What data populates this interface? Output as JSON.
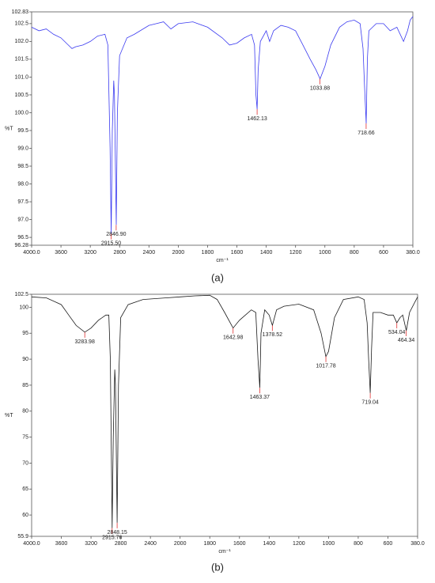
{
  "chart_data": [
    {
      "type": "line",
      "caption": "(a)",
      "x_label": "cm⁻¹",
      "y_label": "%T",
      "color": "#3a3af0",
      "xlim": [
        4000,
        380
      ],
      "xticks": [
        {
          "value": 4000,
          "label": "4000.0"
        },
        3600,
        3200,
        2800,
        2400,
        2000,
        1800,
        1600,
        1400,
        1200,
        1000,
        800,
        600,
        {
          "value": 380,
          "label": "380.0"
        }
      ],
      "ylim": [
        96.28,
        102.83
      ],
      "yticks": [
        96.28,
        96.5,
        {
          "value": 97,
          "label": "97.0"
        },
        97.5,
        {
          "value": 98,
          "label": "98.0"
        },
        98.5,
        {
          "value": 99,
          "label": "99.0"
        },
        99.5,
        {
          "value": 100,
          "label": "100.0"
        },
        100.5,
        {
          "value": 101,
          "label": "101.0"
        },
        101.5,
        {
          "value": 102,
          "label": "102.0"
        },
        102.5,
        102.83
      ],
      "x": [
        4000,
        3900,
        3800,
        3700,
        3600,
        3500,
        3450,
        3400,
        3300,
        3200,
        3100,
        3000,
        2960,
        2930,
        2915,
        2900,
        2880,
        2870,
        2846,
        2830,
        2800,
        2700,
        2600,
        2400,
        2300,
        2200,
        2100,
        2000,
        1900,
        1800,
        1700,
        1650,
        1600,
        1550,
        1500,
        1480,
        1470,
        1462,
        1455,
        1440,
        1400,
        1377,
        1350,
        1300,
        1250,
        1200,
        1150,
        1100,
        1060,
        1033,
        1000,
        960,
        900,
        850,
        800,
        760,
        740,
        730,
        718,
        710,
        700,
        650,
        600,
        550,
        500,
        450,
        420,
        400,
        380
      ],
      "values": [
        102.4,
        102.3,
        102.35,
        102.2,
        102.1,
        101.9,
        101.8,
        101.85,
        101.9,
        102.0,
        102.15,
        102.2,
        101.9,
        99.0,
        96.6,
        99.5,
        100.9,
        100.5,
        96.85,
        100.0,
        101.6,
        102.1,
        102.2,
        102.45,
        102.5,
        102.55,
        102.35,
        102.5,
        102.55,
        102.4,
        102.1,
        101.9,
        101.95,
        102.1,
        102.2,
        101.9,
        100.5,
        100.1,
        101.2,
        102.0,
        102.3,
        102.0,
        102.3,
        102.45,
        102.4,
        102.3,
        101.9,
        101.5,
        101.2,
        100.95,
        101.3,
        101.9,
        102.4,
        102.55,
        102.6,
        102.5,
        101.8,
        100.8,
        99.7,
        101.5,
        102.3,
        102.5,
        102.5,
        102.3,
        102.4,
        102.0,
        102.3,
        102.6,
        102.7
      ],
      "peaks": [
        {
          "x": 2915.5,
          "y": 96.6,
          "label": "2915.50"
        },
        {
          "x": 2846.9,
          "y": 96.85,
          "label": "2846.90"
        },
        {
          "x": 1462.13,
          "y": 100.1,
          "label": "1462.13"
        },
        {
          "x": 1033.88,
          "y": 100.95,
          "label": "1033.88"
        },
        {
          "x": 718.66,
          "y": 99.7,
          "label": "718.66"
        }
      ]
    },
    {
      "type": "line",
      "caption": "(b)",
      "x_label": "cm⁻¹",
      "y_label": "%T",
      "color": "#1a1a1a",
      "xlim": [
        4000,
        380
      ],
      "xticks": [
        {
          "value": 4000,
          "label": "4000.0"
        },
        3600,
        3200,
        2800,
        2400,
        2000,
        1800,
        1600,
        1400,
        1200,
        1000,
        800,
        600,
        {
          "value": 380,
          "label": "380.0"
        }
      ],
      "ylim": [
        55.9,
        102.5
      ],
      "yticks": [
        55.9,
        60,
        65,
        70,
        75,
        80,
        85,
        90,
        95,
        100,
        102.5
      ],
      "x": [
        4000,
        3800,
        3600,
        3500,
        3400,
        3284,
        3200,
        3100,
        3000,
        2960,
        2940,
        2915,
        2900,
        2880,
        2870,
        2848,
        2830,
        2800,
        2700,
        2500,
        2200,
        2000,
        1900,
        1800,
        1750,
        1700,
        1643,
        1600,
        1520,
        1490,
        1475,
        1463,
        1455,
        1430,
        1400,
        1378,
        1350,
        1300,
        1200,
        1100,
        1050,
        1018,
        1000,
        960,
        900,
        800,
        760,
        740,
        730,
        719,
        710,
        700,
        650,
        600,
        560,
        534,
        510,
        490,
        464,
        440,
        400,
        380
      ],
      "values": [
        102.0,
        101.8,
        100.5,
        98.5,
        96.5,
        95.2,
        96.0,
        97.5,
        98.5,
        98.5,
        90.0,
        57.5,
        75.0,
        88.0,
        85.0,
        58.5,
        85.0,
        98.0,
        100.5,
        101.5,
        101.8,
        102.0,
        102.2,
        102.3,
        101.5,
        99.0,
        96.0,
        97.5,
        99.5,
        99.0,
        90.0,
        84.5,
        95.0,
        99.5,
        98.5,
        96.5,
        99.5,
        100.2,
        100.6,
        99.5,
        95.0,
        90.5,
        91.5,
        98.0,
        101.5,
        102.0,
        101.5,
        97.0,
        90.0,
        83.5,
        92.0,
        99.0,
        99.0,
        98.5,
        98.5,
        97.0,
        98.0,
        98.5,
        95.5,
        99.0,
        101.0,
        102.0
      ],
      "peaks": [
        {
          "x": 3283.98,
          "y": 95.2,
          "label": "3283.98"
        },
        {
          "x": 2915.76,
          "y": 57.5,
          "label": "2915.76"
        },
        {
          "x": 2848.15,
          "y": 58.5,
          "label": "2848.15"
        },
        {
          "x": 1642.98,
          "y": 96.0,
          "label": "1642.98"
        },
        {
          "x": 1463.37,
          "y": 84.5,
          "label": "1463.37"
        },
        {
          "x": 1378.52,
          "y": 96.5,
          "label": "1378.52"
        },
        {
          "x": 1017.78,
          "y": 90.5,
          "label": "1017.78"
        },
        {
          "x": 719.04,
          "y": 83.5,
          "label": "719.04"
        },
        {
          "x": 534.04,
          "y": 97.0,
          "label": "534.04"
        },
        {
          "x": 464.34,
          "y": 95.5,
          "label": "464.34"
        }
      ]
    }
  ]
}
